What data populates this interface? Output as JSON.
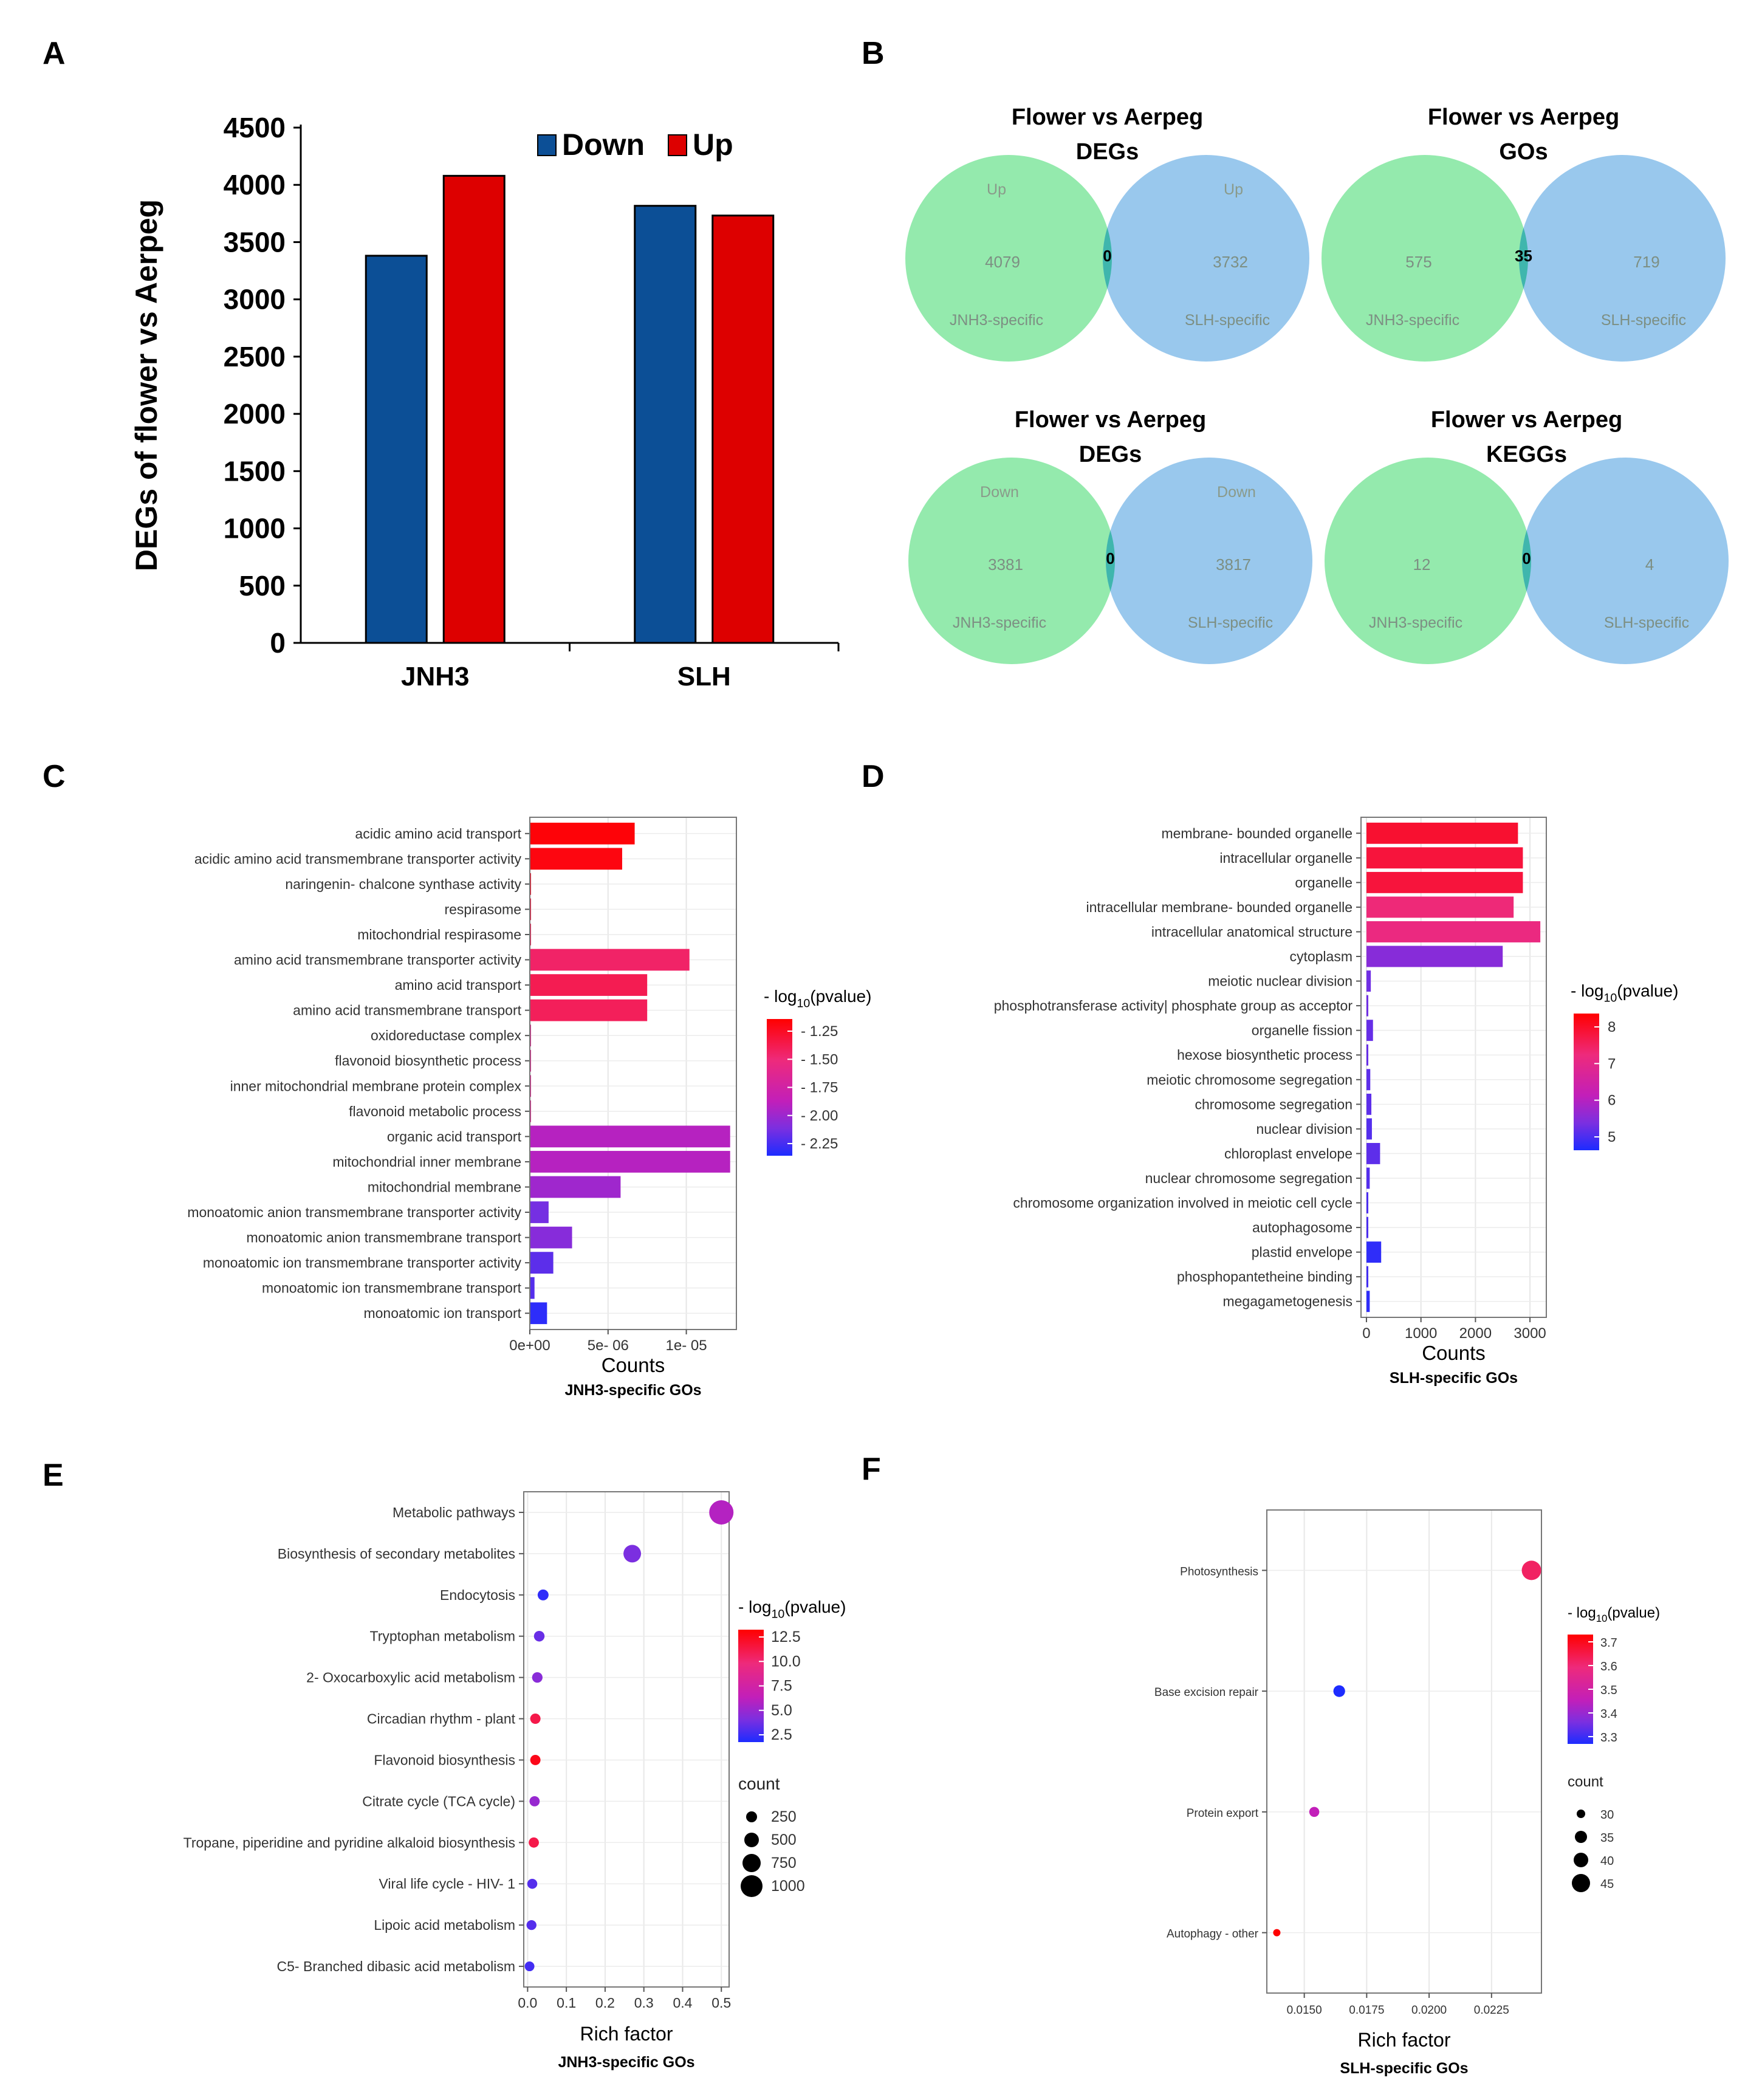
{
  "panel_labels": {
    "A": "A",
    "B": "B",
    "C": "C",
    "D": "D",
    "E": "E",
    "F": "F"
  },
  "colors": {
    "down": "#0c4f96",
    "up": "#dd0000",
    "venn_left": "#8ee9a9",
    "venn_right": "#94c5ec",
    "venn_overlap": "#3fb6ad",
    "grad_high": "#ff0000",
    "grad_mid_hi": "#ee2a7b",
    "grad_mid": "#c21fb9",
    "grad_mid_lo": "#7b2fe0",
    "grad_low": "#1d2cff"
  },
  "chart_data": [
    {
      "panel": "A",
      "type": "bar",
      "categories": [
        "JNH3",
        "SLH"
      ],
      "series": [
        {
          "name": "Down",
          "values": [
            3381,
            3817
          ]
        },
        {
          "name": "Up",
          "values": [
            4079,
            3732
          ]
        }
      ],
      "ylabel": "DEGs of flower vs Aerpeg",
      "ylim": [
        0,
        4500
      ],
      "yticks": [
        0,
        500,
        1000,
        1500,
        2000,
        2500,
        3000,
        3500,
        4000,
        4500
      ],
      "legend_position": "top"
    },
    {
      "panel": "B",
      "type": "venn",
      "diagrams": [
        {
          "title_line1": "Flower vs Aerpeg",
          "title_line2": "DEGs",
          "left_tag": "Up",
          "right_tag": "Up",
          "left_value": 4079,
          "overlap_value": 0,
          "right_value": 3732,
          "left_set": "JNH3-specific",
          "right_set": "SLH-specific"
        },
        {
          "title_line1": "Flower vs Aerpeg",
          "title_line2": "GOs",
          "left_tag": "",
          "right_tag": "",
          "left_value": 575,
          "overlap_value": 35,
          "right_value": 719,
          "left_set": "JNH3-specific",
          "right_set": "SLH-specific"
        },
        {
          "title_line1": "Flower vs Aerpeg",
          "title_line2": "DEGs",
          "left_tag": "Down",
          "right_tag": "Down",
          "left_value": 3381,
          "overlap_value": 0,
          "right_value": 3817,
          "left_set": "JNH3-specific",
          "right_set": "SLH-specific"
        },
        {
          "title_line1": "Flower vs Aerpeg",
          "title_line2": "KEGGs",
          "left_tag": "",
          "right_tag": "",
          "left_value": 12,
          "overlap_value": 0,
          "right_value": 4,
          "left_set": "JNH3-specific",
          "right_set": "SLH-specific"
        }
      ]
    },
    {
      "panel": "C",
      "type": "bar",
      "orientation": "horizontal",
      "categories": [
        "acidic amino acid transport",
        "acidic amino acid transmembrane transporter activity",
        "naringenin- chalcone synthase activity",
        "respirasome",
        "mitochondrial respirasome",
        "amino acid transmembrane transporter activity",
        "amino acid transport",
        "amino acid transmembrane transport",
        "oxidoreductase complex",
        "flavonoid biosynthetic process",
        "inner mitochondrial membrane protein complex",
        "flavonoid metabolic process",
        "organic acid transport",
        "mitochondrial inner membrane",
        "mitochondrial membrane",
        "monoatomic anion transmembrane transporter activity",
        "monoatomic anion transmembrane transport",
        "monoatomic ion transmembrane transporter activity",
        "monoatomic ion transmembrane transport",
        "monoatomic ion transport"
      ],
      "values": [
        6.7e-06,
        5.9e-06,
        0,
        0,
        0,
        1.02e-05,
        7.5e-06,
        7.5e-06,
        0,
        0,
        0,
        0,
        1.28e-05,
        1.28e-05,
        5.8e-06,
        1.2e-06,
        2.7e-06,
        1.5e-06,
        3e-07,
        1.1e-06
      ],
      "colors_value": [
        1.22,
        1.24,
        1.3,
        1.35,
        1.4,
        1.45,
        1.4,
        1.42,
        1.6,
        1.6,
        1.6,
        1.6,
        1.85,
        1.85,
        1.95,
        2.12,
        2.05,
        2.2,
        2.22,
        2.35
      ],
      "xticks": [
        0,
        5e-06,
        1e-05
      ],
      "xtick_labels": [
        "0e+00",
        "5e- 06",
        "1e- 05"
      ],
      "xlim": [
        0,
        1.32e-05
      ],
      "xlabel": "Counts",
      "subtitle": "JNH3-specific GOs",
      "legend_title": "- log10(pvalue)",
      "legend_ticks": [
        "- 1.25",
        "- 1.50",
        "- 1.75",
        "- 2.00",
        "- 2.25"
      ],
      "legend_range": [
        1.2,
        2.4
      ]
    },
    {
      "panel": "D",
      "type": "bar",
      "orientation": "horizontal",
      "categories": [
        "membrane- bounded organelle",
        "intracellular organelle",
        "organelle",
        "intracellular membrane- bounded organelle",
        "intracellular anatomical structure",
        "cytoplasm",
        "meiotic nuclear division",
        "phosphotransferase activity| phosphate group as acceptor",
        "organelle fission",
        "hexose biosynthetic process",
        "meiotic chromosome segregation",
        "chromosome segregation",
        "nuclear division",
        "chloroplast envelope",
        "nuclear chromosome segregation",
        "chromosome organization involved in meiotic cell cycle",
        "autophagosome",
        "plastid envelope",
        "phosphopantetheine binding",
        "megagametogenesis"
      ],
      "values": [
        2780,
        2870,
        2870,
        2700,
        3190,
        2500,
        80,
        15,
        120,
        20,
        70,
        90,
        100,
        250,
        60,
        30,
        10,
        270,
        15,
        60
      ],
      "colors_value": [
        8.2,
        8.1,
        8.1,
        7.6,
        7.5,
        5.7,
        5.4,
        5.4,
        5.3,
        5.3,
        5.2,
        5.2,
        5.1,
        5.2,
        5.1,
        5.0,
        5.0,
        4.7,
        4.9,
        4.7
      ],
      "xticks": [
        0,
        1000,
        2000,
        3000
      ],
      "xlim": [
        -100,
        3300
      ],
      "xlabel": "Counts",
      "subtitle": "SLH-specific GOs",
      "legend_title": "- log10(pvalue)",
      "legend_ticks": [
        "8",
        "7",
        "6",
        "5"
      ],
      "legend_range": [
        4.5,
        8.6
      ]
    },
    {
      "panel": "E",
      "type": "scatter",
      "categories": [
        "Metabolic pathways",
        "Biosynthesis of secondary metabolites",
        "Endocytosis",
        "Tryptophan metabolism",
        "2- Oxocarboxylic acid metabolism",
        "Circadian rhythm -  plant",
        "Flavonoid biosynthesis",
        "Citrate cycle (TCA cycle)",
        "Tropane, piperidine and pyridine alkaloid biosynthesis",
        "Viral life cycle -  HIV- 1",
        "Lipoic acid metabolism",
        "C5- Branched dibasic acid metabolism"
      ],
      "x": [
        0.5,
        0.27,
        0.04,
        0.03,
        0.025,
        0.02,
        0.02,
        0.018,
        0.016,
        0.012,
        0.01,
        0.005
      ],
      "count": [
        1100,
        620,
        140,
        120,
        110,
        100,
        95,
        90,
        90,
        75,
        70,
        55
      ],
      "colors_value": [
        7.0,
        5.0,
        3.0,
        4.5,
        5.5,
        11.0,
        12.0,
        6.0,
        11.0,
        4.0,
        4.0,
        3.5
      ],
      "xticks": [
        0.0,
        0.1,
        0.2,
        0.3,
        0.4,
        0.5
      ],
      "xtick_labels": [
        "0.0",
        "0.1",
        "0.2",
        "0.3",
        "0.4",
        "0.5"
      ],
      "xlim": [
        -0.01,
        0.52
      ],
      "xlabel": "Rich factor",
      "subtitle": "JNH3-specific GOs",
      "legend_title": "- log10(pvalue)",
      "legend_ticks": [
        "12.5",
        "10.0",
        "7.5",
        "5.0",
        "2.5"
      ],
      "legend_range": [
        2.5,
        12.5
      ],
      "size_legend_title": "count",
      "size_legend_values": [
        "250",
        "500",
        "750",
        "1000"
      ]
    },
    {
      "panel": "F",
      "type": "scatter",
      "categories": [
        "Photosynthesis",
        "Base excision repair",
        "Protein export",
        "Autophagy -  other"
      ],
      "x": [
        0.0241,
        0.0164,
        0.0154,
        0.0139
      ],
      "count": [
        47,
        33,
        30,
        25
      ],
      "colors_value": [
        3.65,
        3.25,
        3.5,
        3.75
      ],
      "xticks": [
        0.015,
        0.0175,
        0.02,
        0.0225
      ],
      "xtick_labels": [
        "0.0150",
        "0.0175",
        "0.0200",
        "0.0225"
      ],
      "xlim": [
        0.0135,
        0.0245
      ],
      "xlabel": "Rich factor",
      "subtitle": "SLH-specific GOs",
      "legend_title": "- log10(pvalue)",
      "legend_ticks": [
        "3.7",
        "3.6",
        "3.5",
        "3.4",
        "3.3"
      ],
      "legend_range": [
        3.25,
        3.75
      ],
      "size_legend_title": "count",
      "size_legend_values": [
        "30",
        "35",
        "40",
        "45"
      ]
    }
  ]
}
